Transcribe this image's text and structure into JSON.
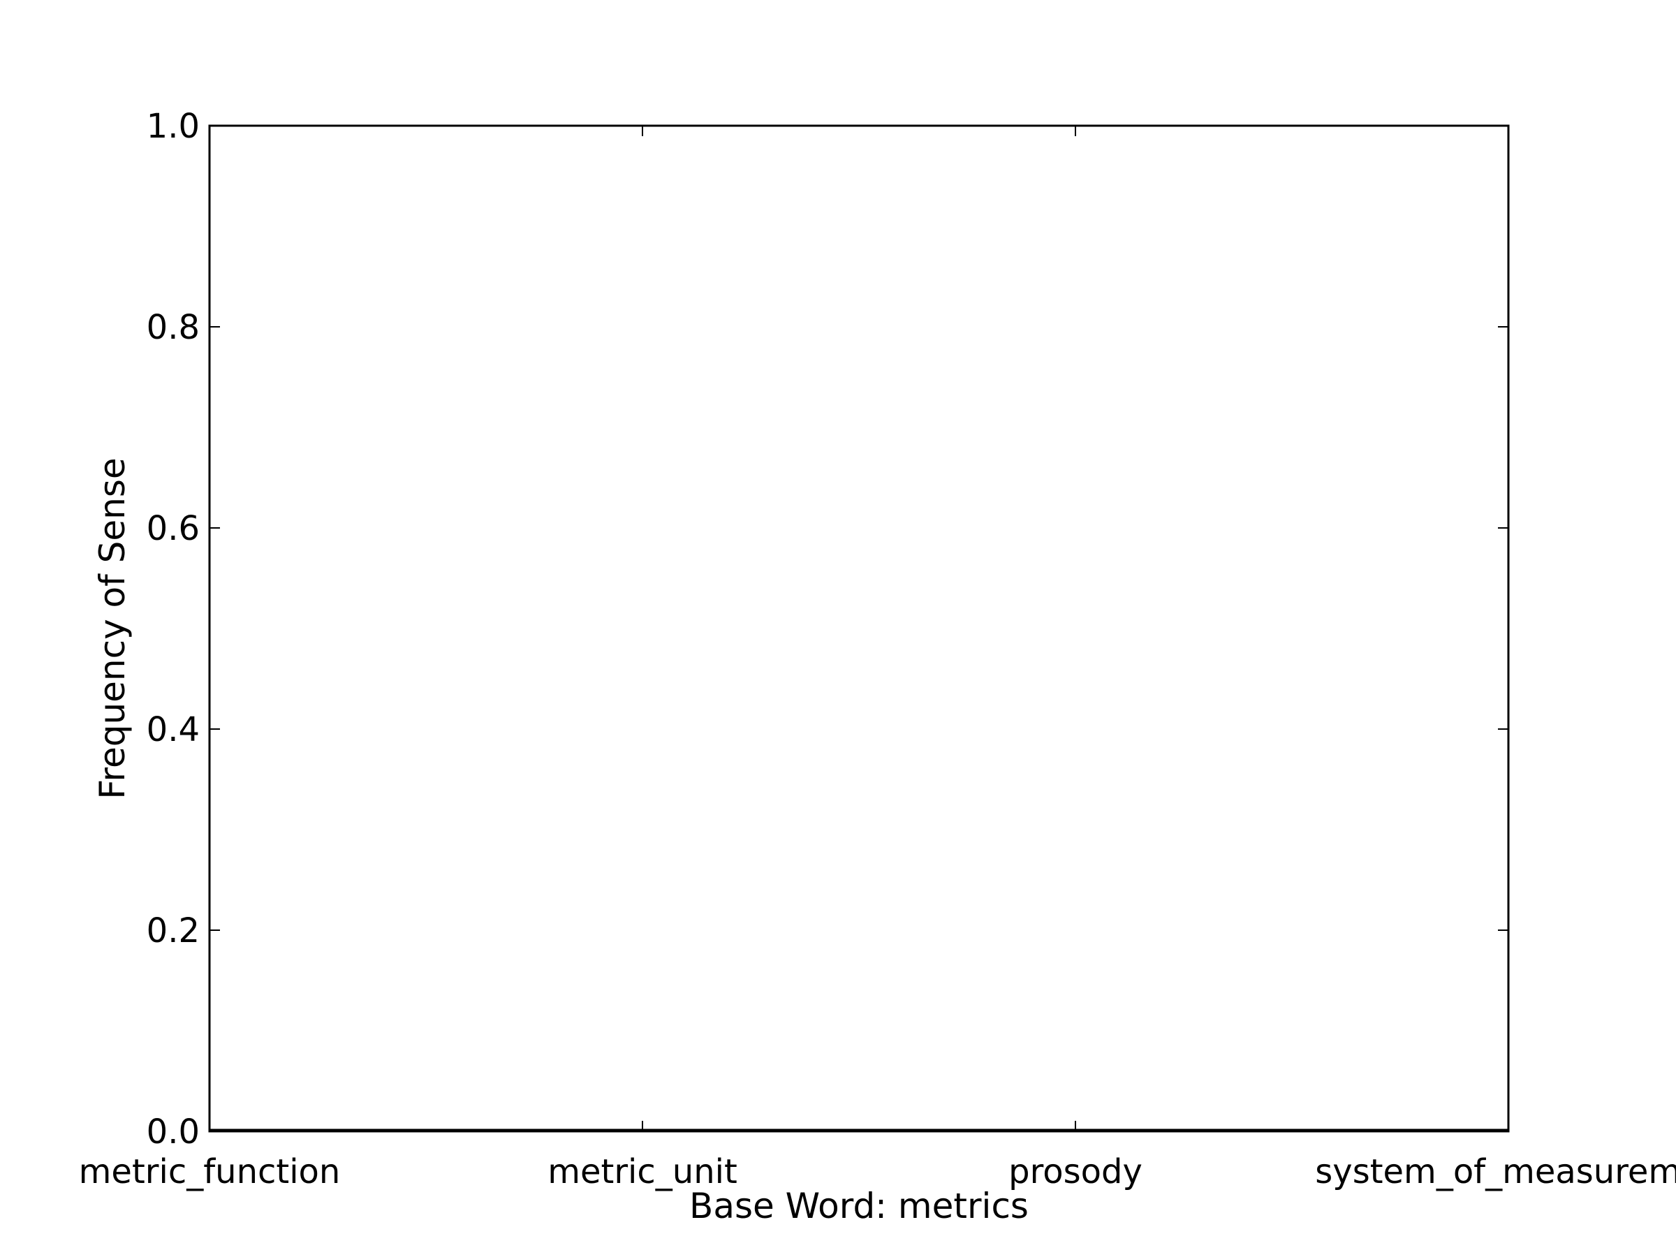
{
  "chart_data": {
    "type": "bar",
    "title": "",
    "xlabel": "Base Word: metrics",
    "ylabel": "Frequency of Sense",
    "categories": [
      "metric_function",
      "metric_unit",
      "prosody",
      "system_of_measureme"
    ],
    "values": [
      0,
      0,
      0,
      0
    ],
    "ylim": [
      0.0,
      1.0
    ],
    "yticks": [
      "0.0",
      "0.2",
      "0.4",
      "0.6",
      "0.8",
      "1.0"
    ],
    "grid": false,
    "legend": "none",
    "colors": {
      "axes": "#000000",
      "background": "#ffffff",
      "bar": "#0000ff"
    }
  }
}
